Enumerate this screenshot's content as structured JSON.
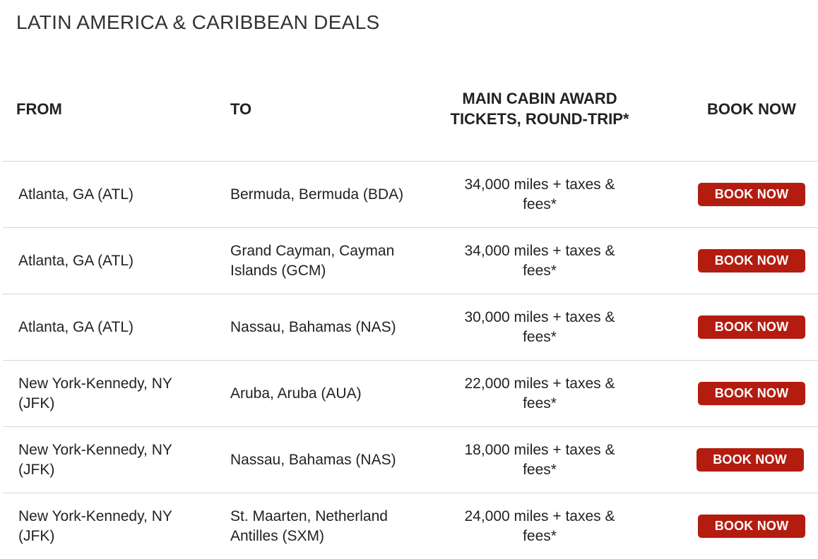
{
  "page": {
    "title": "LATIN AMERICA & CARIBBEAN DEALS"
  },
  "table": {
    "headers": {
      "from": "FROM",
      "to": "TO",
      "miles": "MAIN CABIN AWARD TICKETS, ROUND-TRIP*",
      "book": "BOOK NOW"
    },
    "rows": [
      {
        "from": "Atlanta, GA (ATL)",
        "to": "Bermuda, Bermuda (BDA)",
        "miles": "34,000 miles + taxes & fees*",
        "book": "BOOK NOW"
      },
      {
        "from": "Atlanta, GA (ATL)",
        "to": "Grand Cayman, Cayman Islands (GCM)",
        "miles": "34,000 miles + taxes & fees*",
        "book": "BOOK NOW"
      },
      {
        "from": "Atlanta, GA (ATL)",
        "to": "Nassau, Bahamas (NAS)",
        "miles": "30,000 miles + taxes & fees*",
        "book": "BOOK NOW"
      },
      {
        "from": "New York-Kennedy, NY (JFK)",
        "to": "Aruba, Aruba (AUA)",
        "miles": "22,000 miles + taxes & fees*",
        "book": "BOOK NOW"
      },
      {
        "from": "New York-Kennedy, NY (JFK)",
        "to": "Nassau, Bahamas (NAS)",
        "miles": "18,000 miles + taxes & fees*",
        "book": "BOOK NOW"
      },
      {
        "from": "New York-Kennedy, NY (JFK)",
        "to": "St. Maarten, Netherland Antilles (SXM)",
        "miles": "24,000 miles + taxes & fees*",
        "book": "BOOK NOW"
      }
    ]
  },
  "colors": {
    "button_bg": "#b41c10",
    "button_text": "#ffffff",
    "divider": "#d6d6d6",
    "text": "#222222"
  }
}
